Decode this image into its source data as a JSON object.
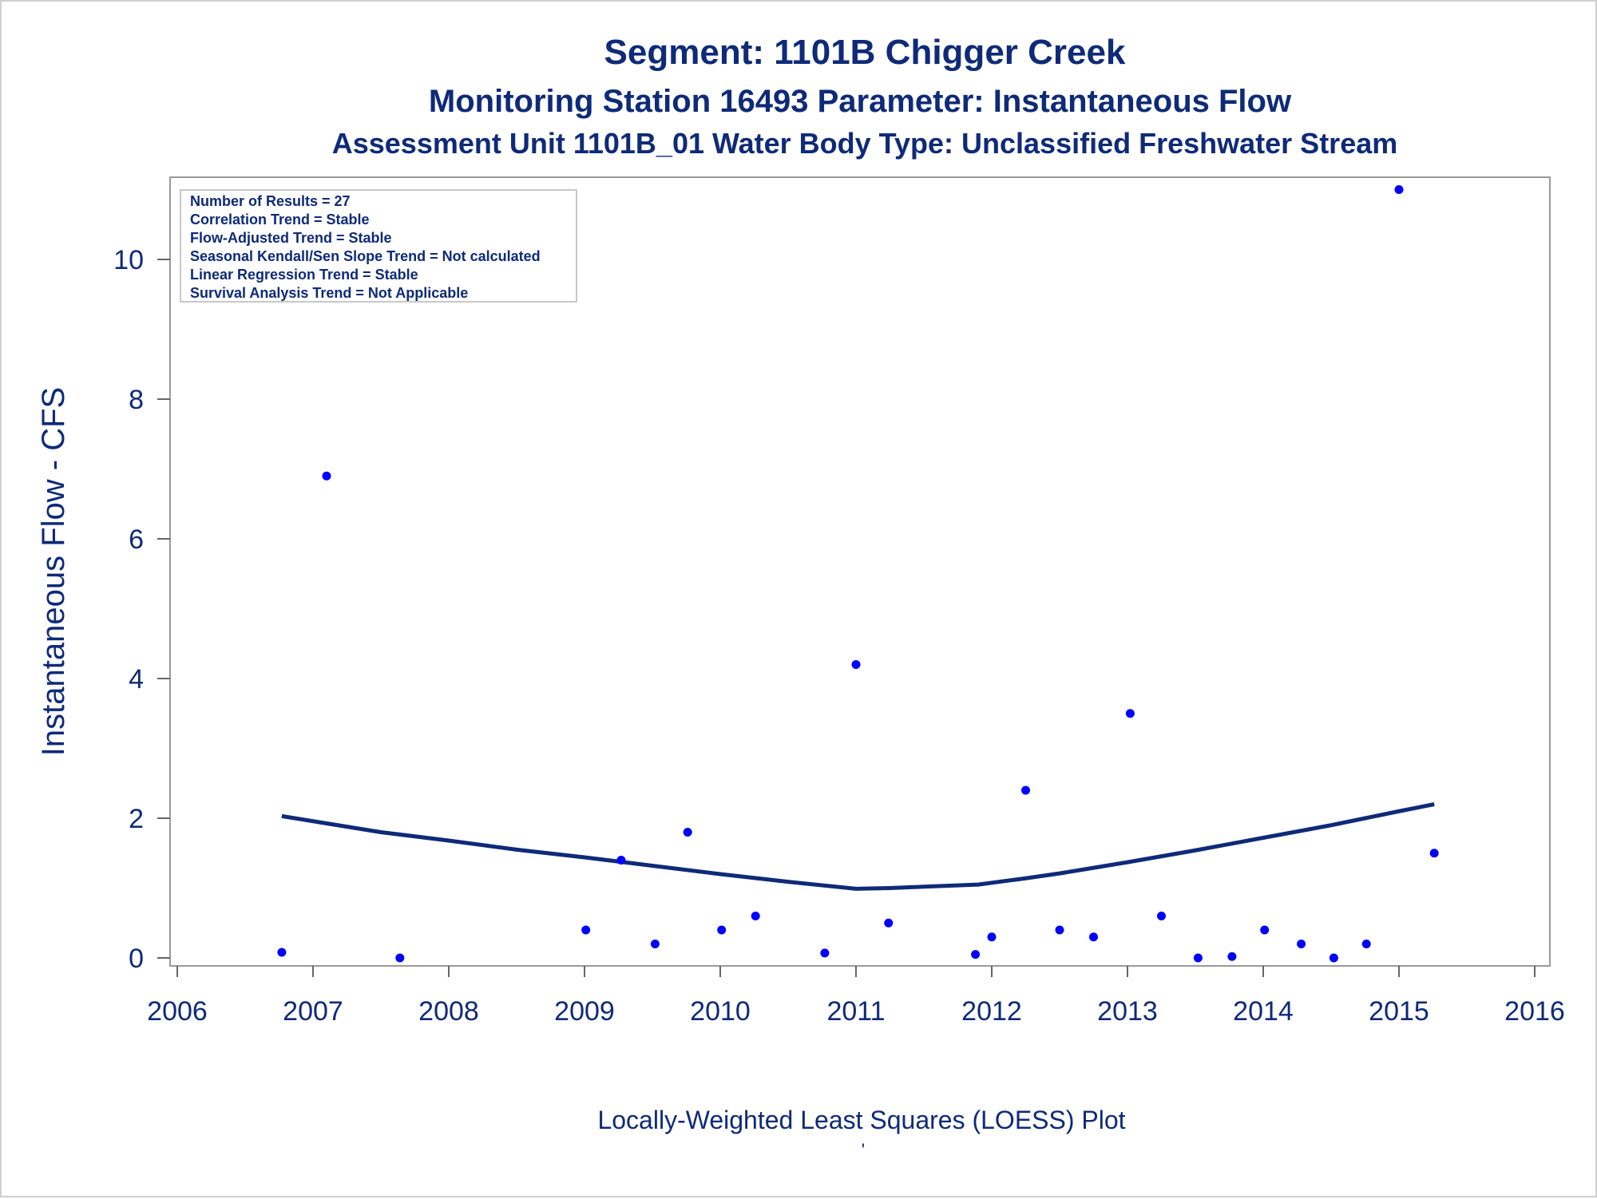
{
  "chart_data": {
    "type": "scatter",
    "title": "Segment: 1101B  Chigger Creek",
    "subtitle": "Monitoring Station 16493 Parameter: Instantaneous Flow",
    "subtitle2": "Assessment Unit 1101B_01   Water Body Type: Unclassified Freshwater Stream",
    "xlabel": "",
    "ylabel": "Instantaneous Flow - CFS",
    "footnote": "Locally-Weighted Least Squares (LOESS) Plot",
    "footnote_mark": "'",
    "xlim": [
      2006,
      2016
    ],
    "ylim": [
      0,
      11.3
    ],
    "xticks": [
      2006,
      2007,
      2008,
      2009,
      2010,
      2011,
      2012,
      2013,
      2014,
      2015,
      2016
    ],
    "xtick_labels": [
      "2006",
      "2007",
      "2008",
      "2009",
      "2010",
      "2011",
      "2012",
      "2013",
      "2014",
      "2015",
      "2016"
    ],
    "yticks": [
      0,
      2,
      4,
      6,
      8,
      10
    ],
    "ytick_labels": [
      "0",
      "2",
      "4",
      "6",
      "8",
      "10"
    ],
    "grid": false,
    "legend_placement": "top-left",
    "legend_lines": [
      "Number of Results = 27",
      "Correlation Trend = Stable",
      "Flow-Adjusted Trend = Stable",
      "Seasonal Kendall/Sen Slope Trend = Not calculated",
      "Linear Regression Trend = Stable",
      "Survival Analysis Trend = Not Applicable"
    ],
    "point_color": "#0000ff",
    "line_color": "#0e2a78",
    "series": [
      {
        "kind": "points",
        "x": [
          2006.77,
          2007.1,
          2007.64,
          2009.01,
          2009.27,
          2009.52,
          2009.76,
          2010.01,
          2010.26,
          2010.77,
          2011.0,
          2011.24,
          2011.88,
          2012.0,
          2012.25,
          2012.5,
          2012.75,
          2013.02,
          2013.25,
          2013.52,
          2013.77,
          2014.01,
          2014.28,
          2014.52,
          2014.76,
          2015.0,
          2015.26
        ],
        "y": [
          0.08,
          6.9,
          0.0,
          0.4,
          1.4,
          0.2,
          1.8,
          0.4,
          0.6,
          0.07,
          4.2,
          0.5,
          0.05,
          0.3,
          2.4,
          0.4,
          0.3,
          3.5,
          0.6,
          0.0,
          0.02,
          0.4,
          0.2,
          0.0,
          0.2,
          11.0,
          1.5
        ]
      },
      {
        "kind": "loess",
        "x": [
          2006.77,
          2007.5,
          2008.0,
          2008.5,
          2009.0,
          2009.5,
          2010.0,
          2010.5,
          2011.0,
          2011.25,
          2011.5,
          2011.9,
          2012.25,
          2012.5,
          2013.0,
          2013.5,
          2014.0,
          2014.5,
          2015.0,
          2015.26
        ],
        "y": [
          2.03,
          1.8,
          1.68,
          1.55,
          1.44,
          1.32,
          1.2,
          1.09,
          0.99,
          1.0,
          1.02,
          1.05,
          1.14,
          1.21,
          1.37,
          1.54,
          1.72,
          1.9,
          2.1,
          2.2
        ]
      }
    ]
  }
}
